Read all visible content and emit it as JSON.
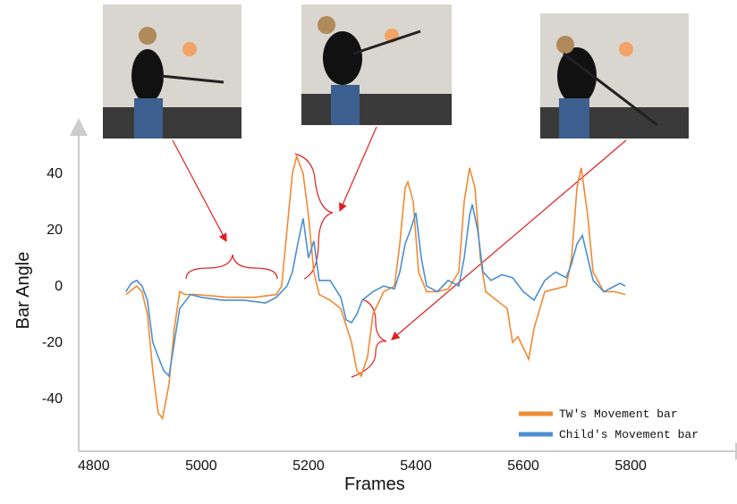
{
  "chart_data": {
    "type": "line",
    "xlabel": "Frames",
    "ylabel": "Bar Angle",
    "xlim": [
      4772,
      6008
    ],
    "ylim": [
      -58.7,
      55.6
    ],
    "xticks": [
      4800,
      5000,
      5200,
      5400,
      5600,
      5800
    ],
    "yticks": [
      40,
      20,
      0,
      -20,
      -40
    ],
    "legend": "lower right",
    "series": [
      {
        "name": "TW's Movement bar",
        "color": "#f08a33",
        "x": [
          4860,
          4880,
          4890,
          4900,
          4910,
          4920,
          4928,
          4940,
          4950,
          4960,
          4970,
          4990,
          5050,
          5100,
          5140,
          5150,
          5160,
          5170,
          5178,
          5190,
          5200,
          5210,
          5220,
          5240,
          5260,
          5280,
          5290,
          5298,
          5310,
          5320,
          5340,
          5360,
          5370,
          5380,
          5385,
          5395,
          5405,
          5420,
          5440,
          5460,
          5480,
          5490,
          5500,
          5510,
          5520,
          5530,
          5550,
          5570,
          5580,
          5590,
          5600,
          5610,
          5620,
          5640,
          5660,
          5680,
          5690,
          5700,
          5708,
          5720,
          5730,
          5750,
          5770,
          5790
        ],
        "values": [
          -3,
          0,
          -2,
          -10,
          -30,
          -45,
          -47,
          -35,
          -15,
          -2,
          -3,
          -3,
          -4,
          -4,
          -3,
          0,
          20,
          40,
          46,
          40,
          25,
          5,
          -3,
          -5,
          -8,
          -20,
          -30,
          -32,
          -25,
          -10,
          -2,
          0,
          15,
          35,
          37,
          30,
          5,
          -2,
          -2,
          -1,
          5,
          30,
          42,
          35,
          10,
          -2,
          -5,
          -8,
          -20,
          -18,
          -22,
          -26,
          -15,
          -2,
          -1,
          0,
          10,
          35,
          42,
          25,
          5,
          -2,
          -2,
          -3
        ]
      },
      {
        "name": "Child's Movement bar",
        "color": "#4a8fd0",
        "x": [
          4860,
          4870,
          4880,
          4890,
          4900,
          4910,
          4920,
          4930,
          4940,
          4950,
          4960,
          4980,
          5000,
          5040,
          5080,
          5120,
          5140,
          5160,
          5170,
          5180,
          5190,
          5200,
          5210,
          5220,
          5240,
          5260,
          5270,
          5280,
          5290,
          5300,
          5320,
          5340,
          5360,
          5370,
          5380,
          5390,
          5400,
          5410,
          5420,
          5440,
          5460,
          5480,
          5490,
          5500,
          5505,
          5515,
          5525,
          5540,
          5560,
          5580,
          5600,
          5620,
          5640,
          5660,
          5680,
          5690,
          5700,
          5710,
          5720,
          5730,
          5750,
          5780,
          5790
        ],
        "values": [
          -2,
          1,
          2,
          0,
          -5,
          -20,
          -25,
          -30,
          -32,
          -20,
          -8,
          -3,
          -4,
          -5,
          -5,
          -6,
          -4,
          0,
          5,
          15,
          24,
          10,
          16,
          2,
          2,
          -4,
          -12,
          -13,
          -10,
          -5,
          -2,
          0,
          -1,
          5,
          15,
          20,
          26,
          10,
          0,
          -2,
          2,
          0,
          10,
          25,
          29,
          20,
          5,
          2,
          4,
          3,
          -2,
          -5,
          2,
          5,
          3,
          8,
          15,
          18,
          10,
          2,
          -2,
          1,
          0
        ]
      }
    ]
  }
}
